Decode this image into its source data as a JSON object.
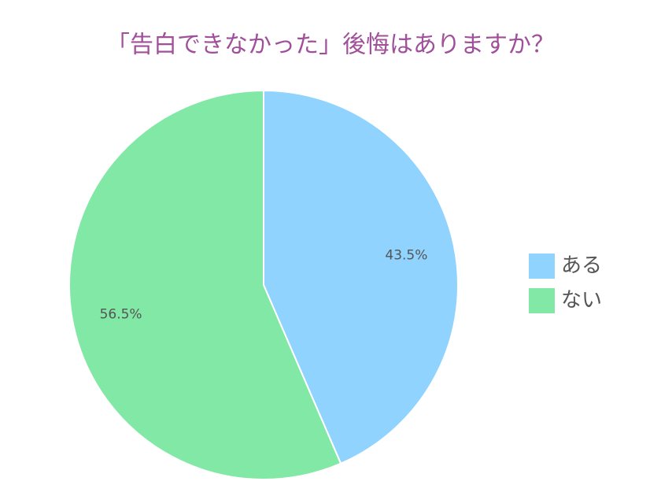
{
  "chart_data": {
    "type": "pie",
    "title": "「告白できなかった」後悔はありますか？",
    "categories": [
      "ある",
      "ない"
    ],
    "values": [
      43.5,
      56.5
    ],
    "value_labels": [
      "43.5%",
      "56.5%"
    ],
    "colors": [
      "#8fd3fe",
      "#82e8a6"
    ],
    "legend": "right"
  }
}
